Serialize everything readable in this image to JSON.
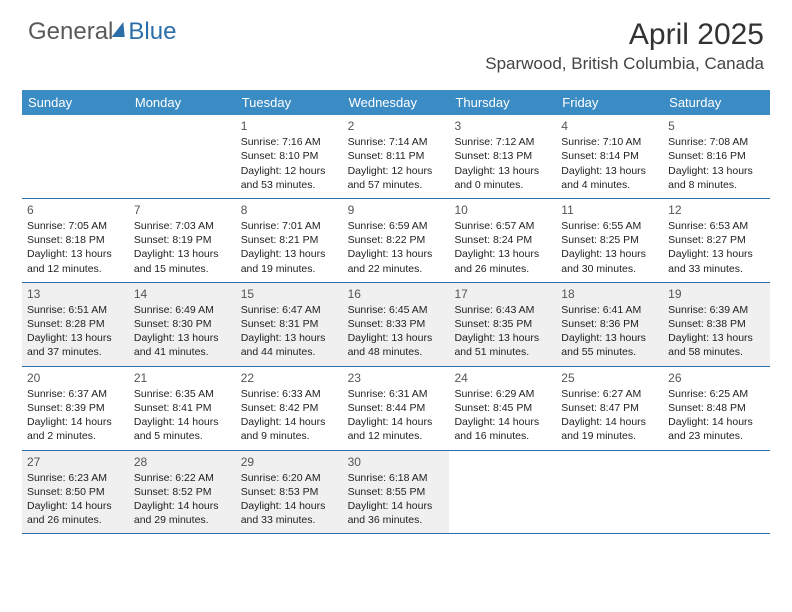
{
  "logo": {
    "general": "General",
    "blue": "Blue"
  },
  "title": "April 2025",
  "location": "Sparwood, British Columbia, Canada",
  "colors": {
    "header_bg": "#3b8bc4",
    "header_text": "#ffffff",
    "border": "#2c6fa8",
    "shaded": "#f0f0f0",
    "body_text": "#222222",
    "daynum": "#555555"
  },
  "day_headers": [
    "Sunday",
    "Monday",
    "Tuesday",
    "Wednesday",
    "Thursday",
    "Friday",
    "Saturday"
  ],
  "weeks": [
    [
      {
        "day": "",
        "sunrise": "",
        "sunset": "",
        "daylight": ""
      },
      {
        "day": "",
        "sunrise": "",
        "sunset": "",
        "daylight": ""
      },
      {
        "day": "1",
        "sunrise": "Sunrise: 7:16 AM",
        "sunset": "Sunset: 8:10 PM",
        "daylight": "Daylight: 12 hours and 53 minutes."
      },
      {
        "day": "2",
        "sunrise": "Sunrise: 7:14 AM",
        "sunset": "Sunset: 8:11 PM",
        "daylight": "Daylight: 12 hours and 57 minutes."
      },
      {
        "day": "3",
        "sunrise": "Sunrise: 7:12 AM",
        "sunset": "Sunset: 8:13 PM",
        "daylight": "Daylight: 13 hours and 0 minutes."
      },
      {
        "day": "4",
        "sunrise": "Sunrise: 7:10 AM",
        "sunset": "Sunset: 8:14 PM",
        "daylight": "Daylight: 13 hours and 4 minutes."
      },
      {
        "day": "5",
        "sunrise": "Sunrise: 7:08 AM",
        "sunset": "Sunset: 8:16 PM",
        "daylight": "Daylight: 13 hours and 8 minutes."
      }
    ],
    [
      {
        "day": "6",
        "sunrise": "Sunrise: 7:05 AM",
        "sunset": "Sunset: 8:18 PM",
        "daylight": "Daylight: 13 hours and 12 minutes."
      },
      {
        "day": "7",
        "sunrise": "Sunrise: 7:03 AM",
        "sunset": "Sunset: 8:19 PM",
        "daylight": "Daylight: 13 hours and 15 minutes."
      },
      {
        "day": "8",
        "sunrise": "Sunrise: 7:01 AM",
        "sunset": "Sunset: 8:21 PM",
        "daylight": "Daylight: 13 hours and 19 minutes."
      },
      {
        "day": "9",
        "sunrise": "Sunrise: 6:59 AM",
        "sunset": "Sunset: 8:22 PM",
        "daylight": "Daylight: 13 hours and 22 minutes."
      },
      {
        "day": "10",
        "sunrise": "Sunrise: 6:57 AM",
        "sunset": "Sunset: 8:24 PM",
        "daylight": "Daylight: 13 hours and 26 minutes."
      },
      {
        "day": "11",
        "sunrise": "Sunrise: 6:55 AM",
        "sunset": "Sunset: 8:25 PM",
        "daylight": "Daylight: 13 hours and 30 minutes."
      },
      {
        "day": "12",
        "sunrise": "Sunrise: 6:53 AM",
        "sunset": "Sunset: 8:27 PM",
        "daylight": "Daylight: 13 hours and 33 minutes."
      }
    ],
    [
      {
        "day": "13",
        "sunrise": "Sunrise: 6:51 AM",
        "sunset": "Sunset: 8:28 PM",
        "daylight": "Daylight: 13 hours and 37 minutes."
      },
      {
        "day": "14",
        "sunrise": "Sunrise: 6:49 AM",
        "sunset": "Sunset: 8:30 PM",
        "daylight": "Daylight: 13 hours and 41 minutes."
      },
      {
        "day": "15",
        "sunrise": "Sunrise: 6:47 AM",
        "sunset": "Sunset: 8:31 PM",
        "daylight": "Daylight: 13 hours and 44 minutes."
      },
      {
        "day": "16",
        "sunrise": "Sunrise: 6:45 AM",
        "sunset": "Sunset: 8:33 PM",
        "daylight": "Daylight: 13 hours and 48 minutes."
      },
      {
        "day": "17",
        "sunrise": "Sunrise: 6:43 AM",
        "sunset": "Sunset: 8:35 PM",
        "daylight": "Daylight: 13 hours and 51 minutes."
      },
      {
        "day": "18",
        "sunrise": "Sunrise: 6:41 AM",
        "sunset": "Sunset: 8:36 PM",
        "daylight": "Daylight: 13 hours and 55 minutes."
      },
      {
        "day": "19",
        "sunrise": "Sunrise: 6:39 AM",
        "sunset": "Sunset: 8:38 PM",
        "daylight": "Daylight: 13 hours and 58 minutes."
      }
    ],
    [
      {
        "day": "20",
        "sunrise": "Sunrise: 6:37 AM",
        "sunset": "Sunset: 8:39 PM",
        "daylight": "Daylight: 14 hours and 2 minutes."
      },
      {
        "day": "21",
        "sunrise": "Sunrise: 6:35 AM",
        "sunset": "Sunset: 8:41 PM",
        "daylight": "Daylight: 14 hours and 5 minutes."
      },
      {
        "day": "22",
        "sunrise": "Sunrise: 6:33 AM",
        "sunset": "Sunset: 8:42 PM",
        "daylight": "Daylight: 14 hours and 9 minutes."
      },
      {
        "day": "23",
        "sunrise": "Sunrise: 6:31 AM",
        "sunset": "Sunset: 8:44 PM",
        "daylight": "Daylight: 14 hours and 12 minutes."
      },
      {
        "day": "24",
        "sunrise": "Sunrise: 6:29 AM",
        "sunset": "Sunset: 8:45 PM",
        "daylight": "Daylight: 14 hours and 16 minutes."
      },
      {
        "day": "25",
        "sunrise": "Sunrise: 6:27 AM",
        "sunset": "Sunset: 8:47 PM",
        "daylight": "Daylight: 14 hours and 19 minutes."
      },
      {
        "day": "26",
        "sunrise": "Sunrise: 6:25 AM",
        "sunset": "Sunset: 8:48 PM",
        "daylight": "Daylight: 14 hours and 23 minutes."
      }
    ],
    [
      {
        "day": "27",
        "sunrise": "Sunrise: 6:23 AM",
        "sunset": "Sunset: 8:50 PM",
        "daylight": "Daylight: 14 hours and 26 minutes."
      },
      {
        "day": "28",
        "sunrise": "Sunrise: 6:22 AM",
        "sunset": "Sunset: 8:52 PM",
        "daylight": "Daylight: 14 hours and 29 minutes."
      },
      {
        "day": "29",
        "sunrise": "Sunrise: 6:20 AM",
        "sunset": "Sunset: 8:53 PM",
        "daylight": "Daylight: 14 hours and 33 minutes."
      },
      {
        "day": "30",
        "sunrise": "Sunrise: 6:18 AM",
        "sunset": "Sunset: 8:55 PM",
        "daylight": "Daylight: 14 hours and 36 minutes."
      },
      {
        "day": "",
        "sunrise": "",
        "sunset": "",
        "daylight": ""
      },
      {
        "day": "",
        "sunrise": "",
        "sunset": "",
        "daylight": ""
      },
      {
        "day": "",
        "sunrise": "",
        "sunset": "",
        "daylight": ""
      }
    ]
  ],
  "shaded_days": [
    13,
    14,
    15,
    16,
    17,
    18,
    19,
    27,
    28,
    29,
    30
  ]
}
